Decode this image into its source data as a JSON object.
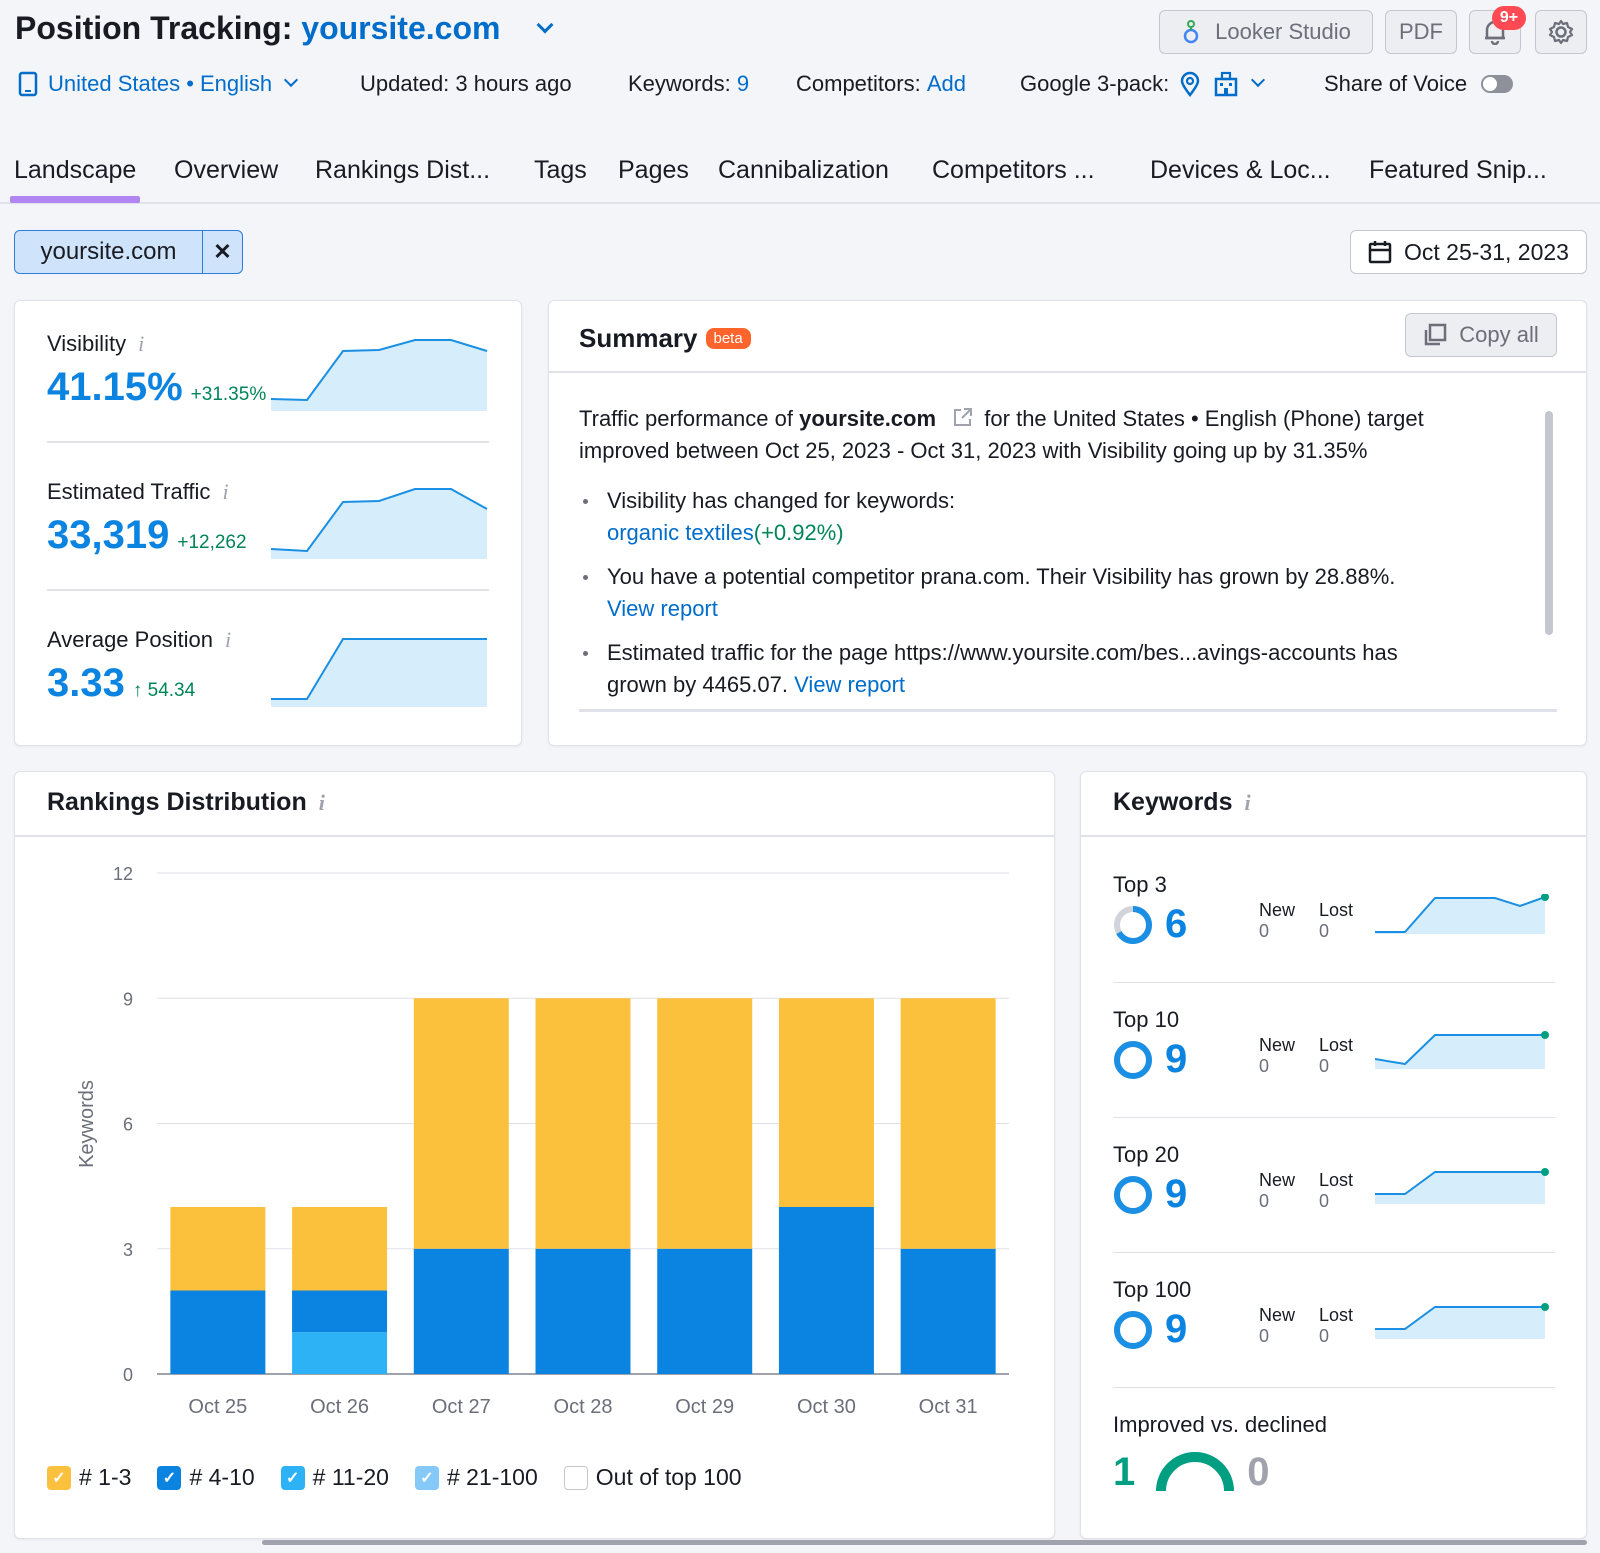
{
  "header": {
    "title_prefix": "Position Tracking:",
    "domain": "yoursite.com",
    "looker_label": "Looker Studio",
    "pdf_label": "PDF",
    "notif_badge": "9+",
    "location": "United States • English",
    "updated": "Updated: 3 hours ago",
    "keywords_label": "Keywords:",
    "keywords_count": "9",
    "competitors_label": "Competitors:",
    "competitors_add": "Add",
    "google3pack_label": "Google 3-pack:",
    "sov_label": "Share of Voice"
  },
  "tabs": [
    "Landscape",
    "Overview",
    "Rankings Dist...",
    "Tags",
    "Pages",
    "Cannibalization",
    "Competitors ...",
    "Devices & Loc...",
    "Featured Snip..."
  ],
  "filter": {
    "chip": "yoursite.com",
    "close": "✕",
    "date": "Oct 25-31, 2023"
  },
  "metrics": [
    {
      "label": "Visibility",
      "info": "i",
      "value": "41.15%",
      "delta": "+31.35%"
    },
    {
      "label": "Estimated Traffic",
      "info": "i",
      "value": "33,319",
      "delta": "+12,262"
    },
    {
      "label": "Average Position",
      "info": "i",
      "value": "3.33",
      "delta": "↑ 54.34"
    }
  ],
  "summary": {
    "title": "Summary",
    "badge": "beta",
    "copy_all": "Copy all",
    "p1_a": "Traffic performance of",
    "p1_domain": "yoursite.com",
    "p1_b": "for the United States • English (Phone) target",
    "p1_c": "improved between Oct 25, 2023 - Oct 31, 2023 with Visibility going up by 31.35%",
    "b1_text": "Visibility has changed for keywords:",
    "b1_link": "organic textiles",
    "b1_delta": "(+0.92%)",
    "b2_text": "You have a potential competitor  prana.com. Their Visibility has grown by 28.88%.",
    "b2_link": "View report",
    "b3_text": "Estimated traffic for the page https://www.yoursite.com/bes...avings-accounts has",
    "b3_text2": "grown by 4465.07.",
    "b3_link": "View report"
  },
  "rankings": {
    "title": "Rankings Distribution",
    "info": "i"
  },
  "chart_data": {
    "type": "bar",
    "stacked": true,
    "categories": [
      "Oct 25",
      "Oct 26",
      "Oct 27",
      "Oct 28",
      "Oct 29",
      "Oct 30",
      "Oct 31"
    ],
    "series": [
      {
        "name": "# 1-3",
        "color": "#fbc13c",
        "values": [
          2,
          2,
          6,
          6,
          6,
          5,
          6
        ]
      },
      {
        "name": "# 4-10",
        "color": "#0a84e0",
        "values": [
          2,
          1,
          3,
          3,
          3,
          4,
          3
        ]
      },
      {
        "name": "# 11-20",
        "color": "#2db3f5",
        "values": [
          0,
          1,
          0,
          0,
          0,
          0,
          0
        ]
      },
      {
        "name": "# 21-100",
        "color": "#85c9f8",
        "values": [
          0,
          0,
          0,
          0,
          0,
          0,
          0
        ]
      },
      {
        "name": "Out of top 100",
        "color": "#ffffff",
        "values": [
          0,
          0,
          0,
          0,
          0,
          0,
          0
        ]
      }
    ],
    "ylabel": "Keywords",
    "yticks": [
      "0",
      "3",
      "6",
      "9",
      "12"
    ],
    "ylim": [
      0,
      12
    ],
    "grid": true,
    "legend": "bottom"
  },
  "keywords": {
    "title": "Keywords",
    "info": "i",
    "rows": [
      {
        "label": "Top 3",
        "value": "6",
        "fraction": 0.67,
        "new_label": "New",
        "lost_label": "Lost",
        "new": "0",
        "lost": "0"
      },
      {
        "label": "Top 10",
        "value": "9",
        "fraction": 1.0,
        "new_label": "New",
        "lost_label": "Lost",
        "new": "0",
        "lost": "0"
      },
      {
        "label": "Top 20",
        "value": "9",
        "fraction": 1.0,
        "new_label": "New",
        "lost_label": "Lost",
        "new": "0",
        "lost": "0"
      },
      {
        "label": "Top 100",
        "value": "9",
        "fraction": 1.0,
        "new_label": "New",
        "lost_label": "Lost",
        "new": "0",
        "lost": "0"
      }
    ],
    "improved_label": "Improved vs. declined",
    "improved": "1",
    "declined": "0"
  },
  "colors": {
    "accent": "#006dca",
    "tab_underline": "#b286f2",
    "positive": "#008557",
    "badge": "#ff642d"
  }
}
